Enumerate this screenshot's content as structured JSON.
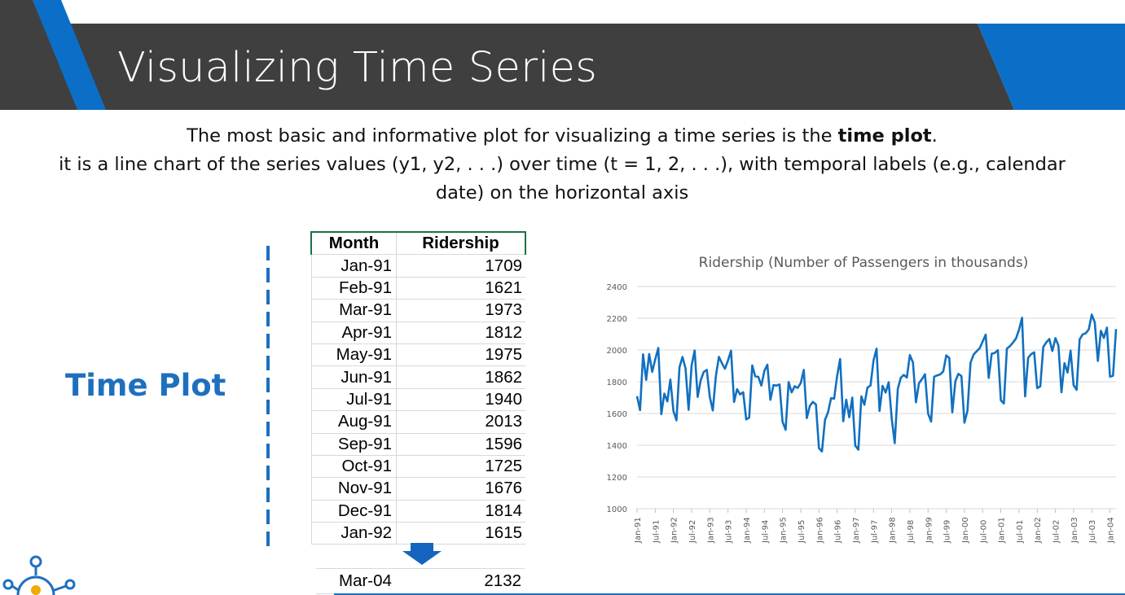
{
  "slide": {
    "title": "Visualizing Time Series",
    "intro_line1_pre": "The most basic and informative plot for visualizing a time series is the ",
    "intro_line1_bold": "time plot",
    "intro_line1_post": ".",
    "intro_line2": "it is a line chart of the series values (y1, y2, . . .) over time (t = 1, 2, . . .), with temporal labels (e.g., calendar",
    "intro_line3": "date) on the horizontal axis",
    "side_label": "Time Plot"
  },
  "colors": {
    "header_dark": "#3f3f3f",
    "header_blue": "#0b6fc7",
    "accent_blue": "#1f6fbf",
    "line_blue": "#1170c0",
    "table_border_green": "#1e7145"
  },
  "table": {
    "headers": [
      "Month",
      "Ridership"
    ],
    "rows": [
      [
        "Jan-91",
        "1709"
      ],
      [
        "Feb-91",
        "1621"
      ],
      [
        "Mar-91",
        "1973"
      ],
      [
        "Apr-91",
        "1812"
      ],
      [
        "May-91",
        "1975"
      ],
      [
        "Jun-91",
        "1862"
      ],
      [
        "Jul-91",
        "1940"
      ],
      [
        "Aug-91",
        "2013"
      ],
      [
        "Sep-91",
        "1596"
      ],
      [
        "Oct-91",
        "1725"
      ],
      [
        "Nov-91",
        "1676"
      ],
      [
        "Dec-91",
        "1814"
      ],
      [
        "Jan-92",
        "1615"
      ]
    ],
    "last_row": [
      "Mar-04",
      "2132"
    ]
  },
  "chart_data": {
    "type": "line",
    "title": "Ridership (Number of Passengers in thousands)",
    "xlabel": "",
    "ylabel": "",
    "ylim": [
      1000,
      2400
    ],
    "yticks": [
      1000,
      1200,
      1400,
      1600,
      1800,
      2000,
      2200,
      2400
    ],
    "xticks": [
      "Jan-91",
      "Jul-91",
      "Jan-92",
      "Jul-92",
      "Jan-93",
      "Jul-93",
      "Jan-94",
      "Jul-94",
      "Jan-95",
      "Jul-95",
      "Jan-96",
      "Jul-96",
      "Jan-97",
      "Jul-97",
      "Jan-98",
      "Jul-98",
      "Jan-99",
      "Jul-99",
      "Jan-00",
      "Jul-00",
      "Jan-01",
      "Jul-01",
      "Jan-02",
      "Jul-02",
      "Jan-03",
      "Jul-03",
      "Jan-04"
    ],
    "x_start": "Jan-91",
    "x_end": "Mar-04",
    "grid": "horizontal",
    "legend": "none",
    "series": [
      {
        "values": [
          1709,
          1621,
          1973,
          1812,
          1975,
          1862,
          1940,
          2013,
          1596,
          1725,
          1676,
          1814,
          1615,
          1557,
          1891,
          1956,
          1885,
          1623,
          1903,
          1997,
          1704,
          1810,
          1862,
          1875,
          1705,
          1619,
          1837,
          1957,
          1917,
          1882,
          1933,
          1996,
          1673,
          1753,
          1720,
          1734,
          1563,
          1574,
          1903,
          1834,
          1831,
          1776,
          1868,
          1907,
          1686,
          1779,
          1776,
          1783,
          1548,
          1497,
          1798,
          1733,
          1772,
          1761,
          1792,
          1875,
          1571,
          1647,
          1673,
          1657,
          1382,
          1361,
          1559,
          1608,
          1697,
          1693,
          1836,
          1943,
          1551,
          1687,
          1576,
          1700,
          1397,
          1372,
          1708,
          1655,
          1763,
          1776,
          1934,
          2008,
          1616,
          1774,
          1732,
          1797,
          1570,
          1413,
          1755,
          1825,
          1843,
          1826,
          1968,
          1922,
          1670,
          1791,
          1817,
          1847,
          1599,
          1549,
          1832,
          1840,
          1846,
          1865,
          1966,
          1949,
          1607,
          1804,
          1850,
          1836,
          1542,
          1617,
          1920,
          1971,
          1992,
          2010,
          2054,
          2097,
          1824,
          1977,
          1981,
          1999,
          1683,
          1663,
          2008,
          2024,
          2047,
          2073,
          2127,
          2203,
          1708,
          1951,
          1974,
          1985,
          1760,
          1771,
          2020,
          2048,
          2069,
          1994,
          2075,
          2027,
          1734,
          1917,
          1858,
          1996,
          1778,
          1749,
          2066,
          2099,
          2105,
          2130,
          2223,
          2174,
          1931,
          2121,
          2076,
          2141,
          1832,
          1838,
          2132
        ]
      }
    ]
  }
}
